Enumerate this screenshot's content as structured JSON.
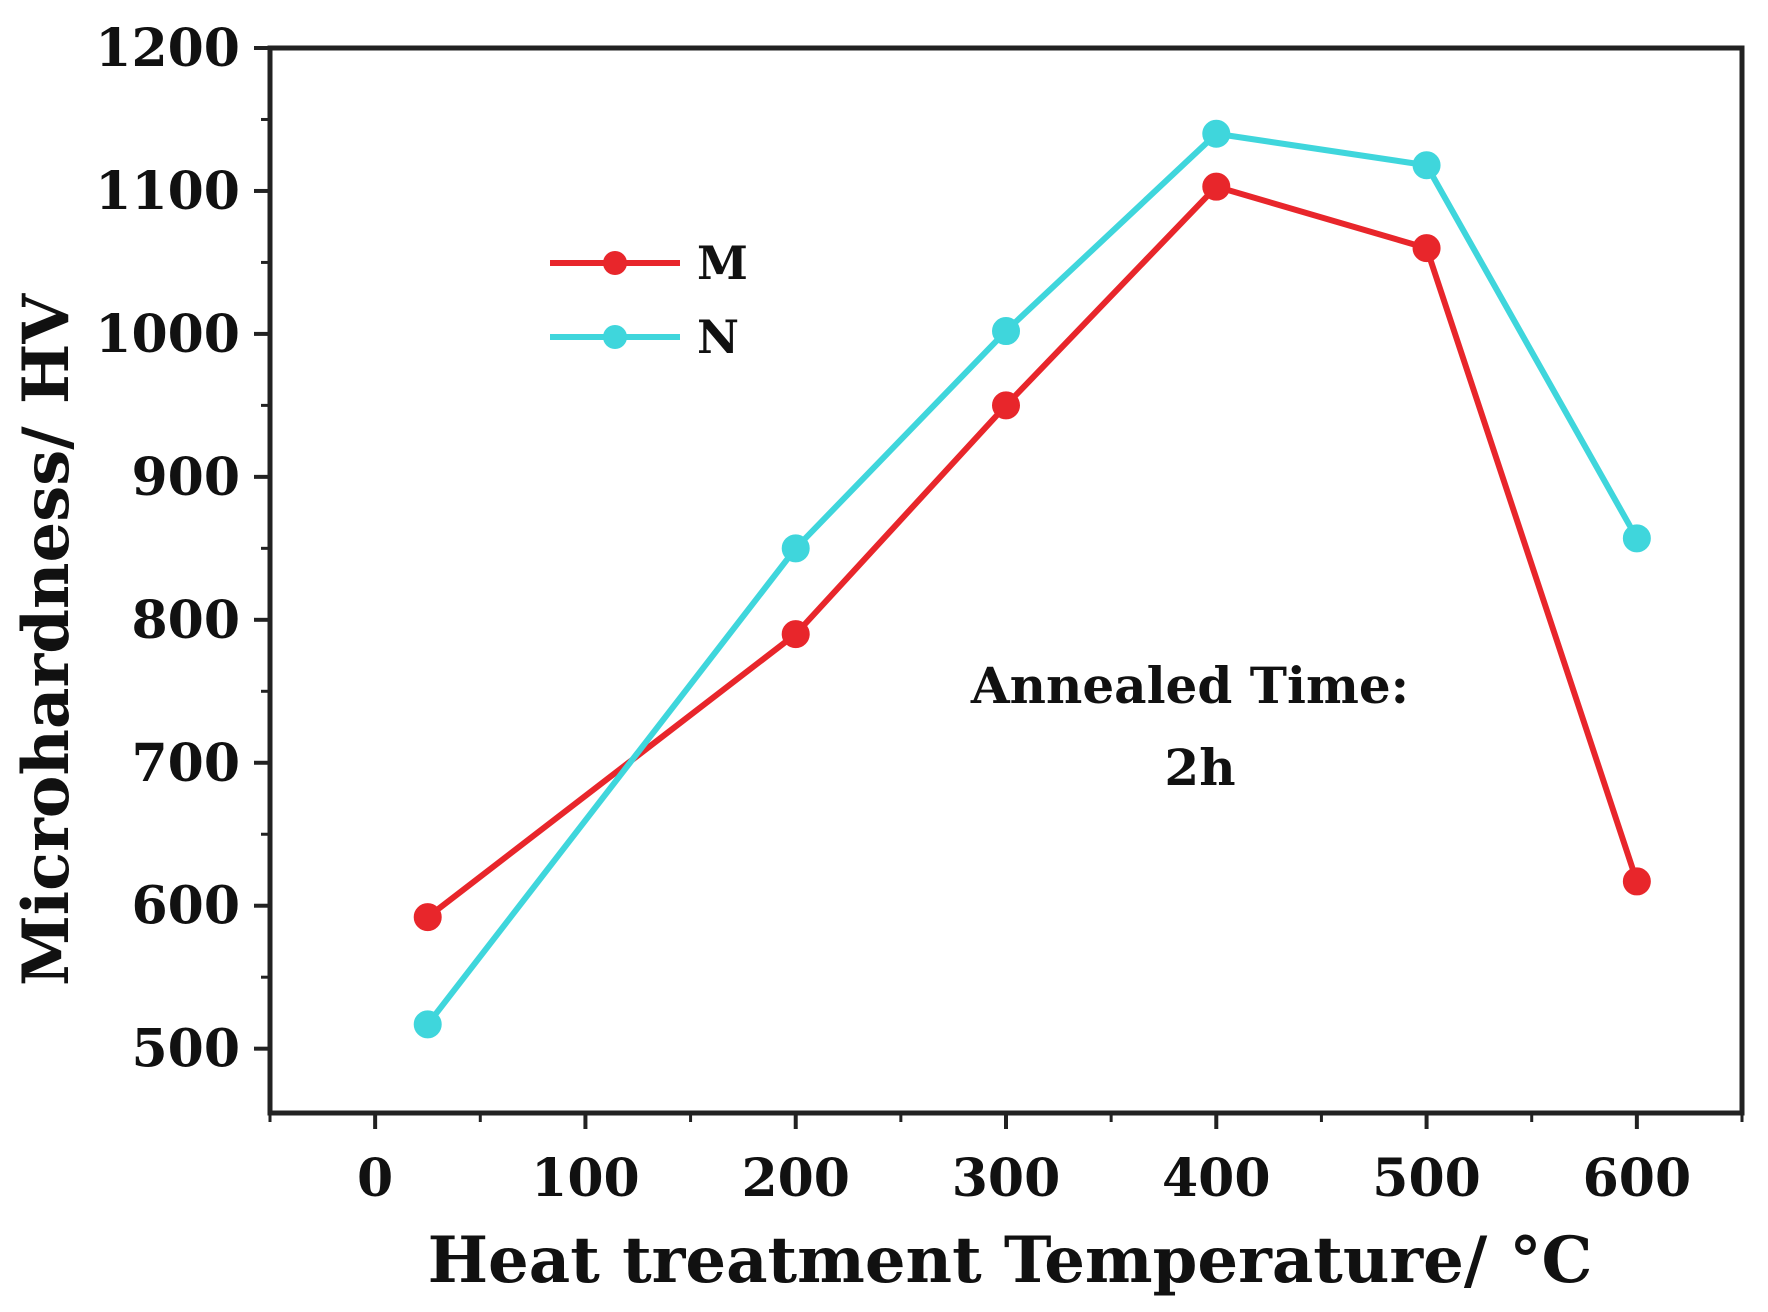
{
  "chart_data": {
    "type": "line",
    "title": "",
    "xlabel": "Heat treatment Temperature/ °C",
    "ylabel": "Microhardness/ HV",
    "xlim": [
      -50,
      650
    ],
    "ylim": [
      455,
      1200
    ],
    "x_ticks": [
      0,
      100,
      200,
      300,
      400,
      500,
      600
    ],
    "x_tick_labels": [
      "0",
      "100",
      "200",
      "300",
      "400",
      "500",
      "600"
    ],
    "y_ticks": [
      500,
      600,
      700,
      800,
      900,
      1000,
      1100,
      1200
    ],
    "y_tick_labels": [
      "500",
      "600",
      "700",
      "800",
      "900",
      "1000",
      "1100",
      "1200"
    ],
    "x": [
      25,
      200,
      300,
      400,
      500,
      600
    ],
    "series": [
      {
        "name": "M",
        "color": "#e8262b",
        "values": [
          592,
          790,
          950,
          1103,
          1060,
          617
        ]
      },
      {
        "name": "N",
        "color": "#3fd6dc",
        "values": [
          517,
          850,
          1002,
          1140,
          1118,
          857
        ]
      }
    ],
    "legend": {
      "position": "upper-left"
    },
    "annotation": {
      "line1": "Annealed Time:",
      "line2": "2h"
    },
    "grid": false
  }
}
